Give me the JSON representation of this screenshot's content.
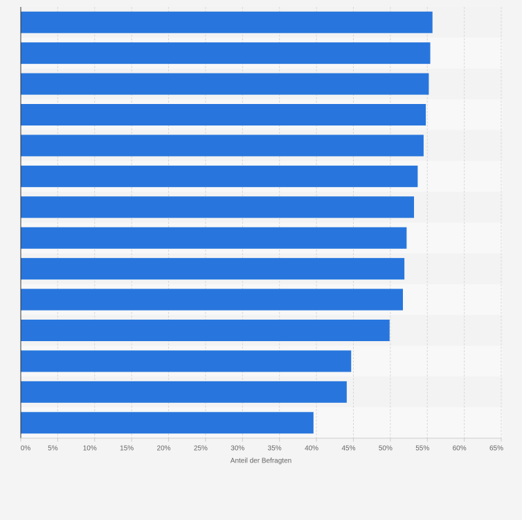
{
  "chart_data": {
    "type": "bar",
    "orientation": "horizontal",
    "x_label": "Anteil der Befragten",
    "categories": [
      null,
      null,
      null,
      null,
      null,
      null,
      null,
      null,
      null,
      null,
      null,
      null,
      null,
      null
    ],
    "values": [
      55.7,
      55.4,
      55.2,
      54.8,
      54.5,
      53.7,
      53.2,
      52.2,
      51.9,
      51.7,
      49.9,
      44.7,
      44.1,
      39.6
    ],
    "color": "#2876dd",
    "xlim": [
      0,
      65
    ],
    "xticks": [
      {
        "value": 0,
        "label": "0%"
      },
      {
        "value": 5,
        "label": "5%"
      },
      {
        "value": 10,
        "label": "10%"
      },
      {
        "value": 15,
        "label": "15%"
      },
      {
        "value": 20,
        "label": "20%"
      },
      {
        "value": 25,
        "label": "25%"
      },
      {
        "value": 30,
        "label": "30%"
      },
      {
        "value": 35,
        "label": "35%"
      },
      {
        "value": 40,
        "label": "40%"
      },
      {
        "value": 45,
        "label": "45%"
      },
      {
        "value": 50,
        "label": "50%"
      },
      {
        "value": 55,
        "label": "55%"
      },
      {
        "value": 60,
        "label": "60%"
      },
      {
        "value": 65,
        "label": "65%"
      }
    ],
    "grid": true
  }
}
